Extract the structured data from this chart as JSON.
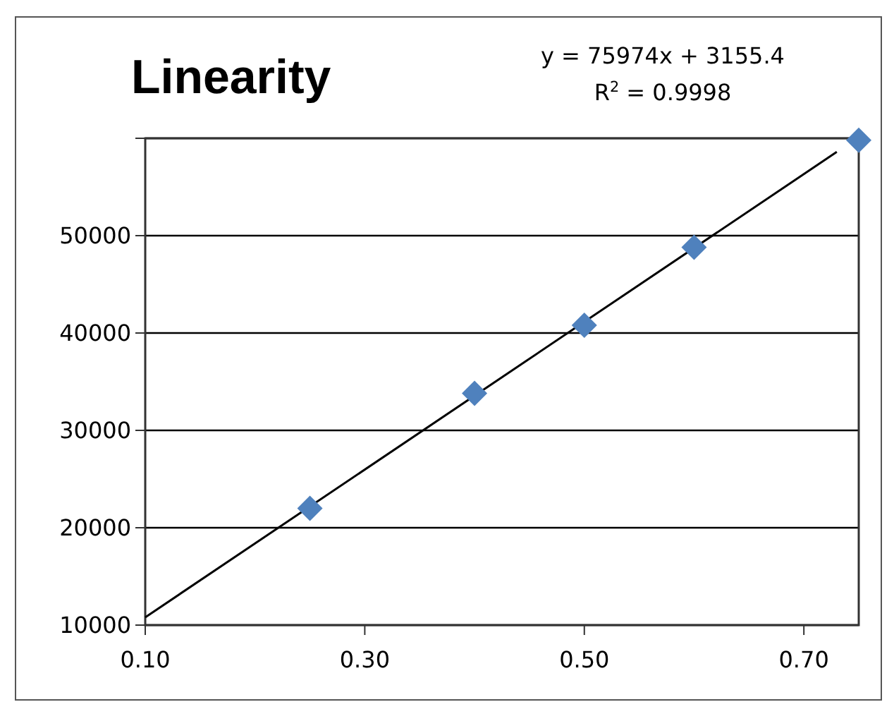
{
  "chart_data": {
    "type": "scatter",
    "title": "Linearity",
    "annotations": [
      "y = 75974x + 3155.4",
      "R$^{2}$ = 0.9998"
    ],
    "xlim": [
      0.1,
      0.75
    ],
    "xticks": [
      {
        "value": 0.1,
        "label": "0.10"
      },
      {
        "value": 0.3,
        "label": "0.30"
      },
      {
        "value": 0.5,
        "label": "0.50"
      },
      {
        "value": 0.7,
        "label": "0.70"
      }
    ],
    "ylim": [
      10000,
      60000
    ],
    "yticks": [
      10000,
      20000,
      30000,
      40000,
      50000,
      {
        "value": 60000,
        "label": null
      }
    ],
    "grid": "y",
    "marker": "diamond",
    "series": [
      {
        "color": "#4f81bd",
        "x": [
          0.25,
          0.4,
          0.5,
          0.6,
          0.75
        ],
        "values": [
          22000,
          33800,
          40800,
          48800,
          59800
        ]
      },
      {
        "type": "line",
        "color": "#000000",
        "x": [
          0.1,
          0.73
        ],
        "values": [
          10800,
          58600
        ],
        "marker": "none"
      }
    ]
  }
}
